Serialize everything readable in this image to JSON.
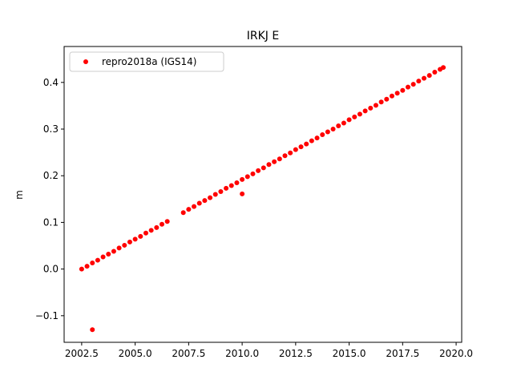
{
  "chart_data": {
    "type": "scatter",
    "title": "IRKJ E",
    "ylabel": "m",
    "xlim": [
      2001.68,
      2020.26
    ],
    "ylim": [
      -0.157,
      0.477
    ],
    "xticks": [
      {
        "value": 2002.5,
        "label": "2002.5"
      },
      {
        "value": 2005.0,
        "label": "2005.0"
      },
      {
        "value": 2007.5,
        "label": "2007.5"
      },
      {
        "value": 2010.0,
        "label": "2010.0"
      },
      {
        "value": 2012.5,
        "label": "2012.5"
      },
      {
        "value": 2015.0,
        "label": "2015.0"
      },
      {
        "value": 2017.5,
        "label": "2017.5"
      },
      {
        "value": 2020.0,
        "label": "2020.0"
      }
    ],
    "yticks": [
      {
        "value": -0.1,
        "label": "−0.1"
      },
      {
        "value": 0.0,
        "label": "0.0"
      },
      0.1,
      0.2,
      0.3,
      0.4
    ],
    "legend": "upper left",
    "series": [
      {
        "name": "repro2018a (IGS14)",
        "color": "#ff0000",
        "x": [
          2002.5,
          2002.75,
          2003.0,
          2003.25,
          2003.5,
          2003.75,
          2004.0,
          2004.25,
          2004.5,
          2004.75,
          2005.0,
          2005.25,
          2005.5,
          2005.75,
          2006.0,
          2006.25,
          2006.5,
          2007.25,
          2007.5,
          2007.75,
          2008.0,
          2008.25,
          2008.5,
          2008.75,
          2009.0,
          2009.25,
          2009.5,
          2009.75,
          2010.0,
          2010.25,
          2010.5,
          2010.75,
          2011.0,
          2011.25,
          2011.5,
          2011.75,
          2012.0,
          2012.25,
          2012.5,
          2012.75,
          2013.0,
          2013.25,
          2013.5,
          2013.75,
          2014.0,
          2014.25,
          2014.5,
          2014.75,
          2015.0,
          2015.25,
          2015.5,
          2015.75,
          2016.0,
          2016.25,
          2016.5,
          2016.75,
          2017.0,
          2017.25,
          2017.5,
          2017.75,
          2018.0,
          2018.25,
          2018.5,
          2018.75,
          2019.0,
          2019.25,
          2019.4,
          2003.0,
          2010.0
        ],
        "values": [
          0,
          0.006,
          0.013,
          0.019,
          0.026,
          0.032,
          0.038,
          0.045,
          0.051,
          0.058,
          0.064,
          0.07,
          0.077,
          0.083,
          0.089,
          0.096,
          0.102,
          0.121,
          0.128,
          0.134,
          0.141,
          0.147,
          0.153,
          0.16,
          0.166,
          0.173,
          0.179,
          0.185,
          0.192,
          0.198,
          0.204,
          0.211,
          0.217,
          0.224,
          0.23,
          0.236,
          0.243,
          0.249,
          0.256,
          0.262,
          0.268,
          0.275,
          0.281,
          0.288,
          0.294,
          0.3,
          0.307,
          0.313,
          0.32,
          0.326,
          0.332,
          0.339,
          0.345,
          0.351,
          0.358,
          0.364,
          0.371,
          0.377,
          0.383,
          0.39,
          0.396,
          0.403,
          0.409,
          0.415,
          0.422,
          0.428,
          0.432,
          -0.13,
          0.161
        ]
      }
    ]
  }
}
